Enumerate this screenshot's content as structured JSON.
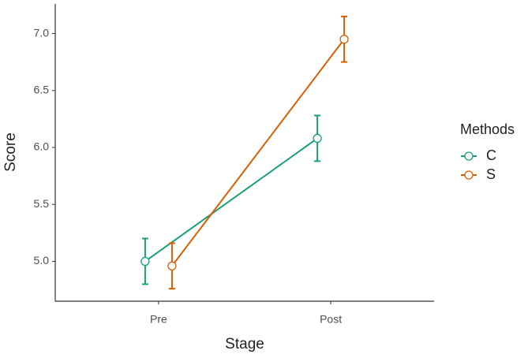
{
  "chart_data": {
    "type": "line",
    "x_label": "Stage",
    "y_label": "Score",
    "categories": [
      "Pre",
      "Post"
    ],
    "series": [
      {
        "name": "C",
        "color": "#1b9e77",
        "values": [
          5.0,
          6.08
        ],
        "errors": [
          0.2,
          0.2
        ]
      },
      {
        "name": "S",
        "color": "#d95f02",
        "values": [
          4.96,
          6.95
        ],
        "errors": [
          0.2,
          0.2
        ]
      }
    ],
    "ylim": [
      4.65,
      7.26
    ],
    "yticks": [
      {
        "value": 5,
        "label": "5.0"
      },
      {
        "value": 5.5,
        "label": "5.5"
      },
      {
        "value": 6,
        "label": "6.0"
      },
      {
        "value": 6.5,
        "label": "6.5"
      },
      {
        "value": 7,
        "label": "7.0"
      }
    ],
    "legend_title": "Methods",
    "legend_position": "right"
  }
}
